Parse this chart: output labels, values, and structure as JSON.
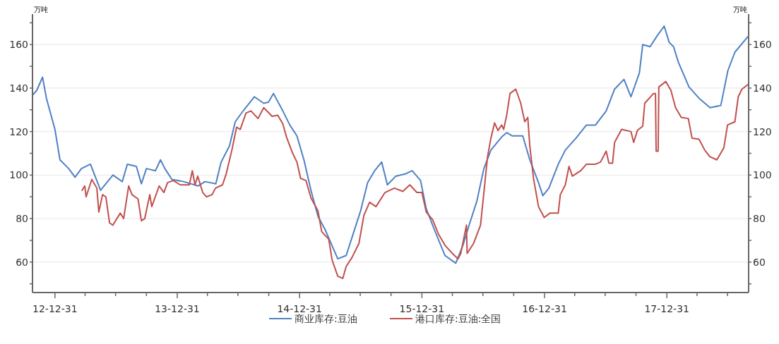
{
  "chart_data": {
    "type": "line",
    "ylabel": "万吨",
    "y2label": "万吨",
    "xlim": [
      "2012-10-25",
      "2018-09-01"
    ],
    "xticks": [
      {
        "value": "2012-12-31",
        "label": "12-12-31"
      },
      {
        "value": "2013-03-31",
        "label": null
      },
      {
        "value": "2013-06-30",
        "label": null
      },
      {
        "value": "2013-09-30",
        "label": null
      },
      {
        "value": "2013-12-31",
        "label": "13-12-31"
      },
      {
        "value": "2014-03-31",
        "label": null
      },
      {
        "value": "2014-06-30",
        "label": null
      },
      {
        "value": "2014-09-30",
        "label": null
      },
      {
        "value": "2014-12-31",
        "label": "14-12-31"
      },
      {
        "value": "2015-03-31",
        "label": null
      },
      {
        "value": "2015-06-30",
        "label": null
      },
      {
        "value": "2015-09-30",
        "label": null
      },
      {
        "value": "2015-12-31",
        "label": "15-12-31"
      },
      {
        "value": "2016-03-31",
        "label": null
      },
      {
        "value": "2016-06-30",
        "label": null
      },
      {
        "value": "2016-09-30",
        "label": null
      },
      {
        "value": "2016-12-31",
        "label": "16-12-31"
      },
      {
        "value": "2017-03-31",
        "label": null
      },
      {
        "value": "2017-06-30",
        "label": null
      },
      {
        "value": "2017-09-30",
        "label": null
      },
      {
        "value": "2017-12-31",
        "label": "17-12-31"
      },
      {
        "value": "2018-03-31",
        "label": null
      },
      {
        "value": "2018-06-30",
        "label": null
      }
    ],
    "ylim": [
      46,
      174
    ],
    "yticks": [
      {
        "value": 50,
        "label": null
      },
      60,
      {
        "value": 70,
        "label": null
      },
      80,
      {
        "value": 90,
        "label": null
      },
      100,
      {
        "value": 110,
        "label": null
      },
      120,
      {
        "value": 130,
        "label": null
      },
      140,
      {
        "value": 150,
        "label": null
      },
      160,
      {
        "value": 170,
        "label": null
      }
    ],
    "y2lim": [
      46,
      174
    ],
    "y2ticks": [
      {
        "value": 50,
        "label": null
      },
      60,
      {
        "value": 70,
        "label": null
      },
      80,
      {
        "value": 90,
        "label": null
      },
      100,
      {
        "value": 110,
        "label": null
      },
      120,
      {
        "value": 130,
        "label": null
      },
      140,
      {
        "value": 150,
        "label": null
      },
      160,
      {
        "value": 170,
        "label": null
      }
    ],
    "grid": "y",
    "legend": "bottom",
    "series": [
      {
        "name": "商业库存:豆油",
        "color": "#4f81c4",
        "x": [
          "2012-10-27",
          "2012-11-07",
          "2012-11-24",
          "2012-12-06",
          "2012-12-15",
          "2012-12-31",
          "2013-01-15",
          "2013-02-10",
          "2013-03-01",
          "2013-03-20",
          "2013-04-16",
          "2013-05-16",
          "2013-06-22",
          "2013-07-20",
          "2013-08-04",
          "2013-08-31",
          "2013-09-15",
          "2013-09-30",
          "2013-10-27",
          "2013-11-11",
          "2013-11-24",
          "2013-12-15",
          "2014-01-19",
          "2014-03-03",
          "2014-03-24",
          "2014-04-25",
          "2014-05-11",
          "2014-06-05",
          "2014-06-22",
          "2014-07-18",
          "2014-08-18",
          "2014-09-15",
          "2014-09-29",
          "2014-10-14",
          "2014-11-11",
          "2014-12-02",
          "2014-12-23",
          "2015-01-13",
          "2015-02-03",
          "2015-02-24",
          "2015-03-17",
          "2015-04-07",
          "2015-04-24",
          "2015-05-19",
          "2015-06-09",
          "2015-07-01",
          "2015-07-22",
          "2015-08-12",
          "2015-09-02",
          "2015-09-19",
          "2015-10-14",
          "2015-11-11",
          "2015-12-02",
          "2015-12-27",
          "2016-01-13",
          "2016-02-06",
          "2016-03-09",
          "2016-04-10",
          "2016-05-01",
          "2016-05-22",
          "2016-06-12",
          "2016-07-03",
          "2016-07-24",
          "2016-08-25",
          "2016-09-09",
          "2016-09-26",
          "2016-10-27",
          "2016-11-17",
          "2016-12-13",
          "2016-12-26",
          "2017-01-13",
          "2017-02-10",
          "2017-03-03",
          "2017-04-04",
          "2017-05-05",
          "2017-06-01",
          "2017-07-03",
          "2017-07-28",
          "2017-08-25",
          "2017-09-15",
          "2017-10-10",
          "2017-10-20",
          "2017-11-11",
          "2017-12-02",
          "2017-12-23",
          "2018-01-07",
          "2018-01-20",
          "2018-02-03",
          "2018-03-07",
          "2018-04-08",
          "2018-05-09",
          "2018-06-10",
          "2018-07-01",
          "2018-07-22",
          "2018-08-29"
        ],
        "values": [
          137,
          139,
          145,
          135,
          130,
          121,
          107,
          103,
          99,
          103,
          105,
          93,
          100,
          97,
          105,
          104,
          96,
          103,
          102,
          107,
          103,
          98,
          97,
          95,
          97,
          96,
          106,
          113.5,
          124.5,
          130,
          136,
          133,
          133.5,
          137.5,
          129.5,
          123,
          118,
          107,
          93,
          81,
          75,
          67.5,
          61.5,
          63,
          73,
          83.5,
          96.5,
          102,
          106,
          95.5,
          99.5,
          100.5,
          102,
          97.5,
          84.5,
          75,
          63,
          59.5,
          67.5,
          78,
          88,
          103,
          111.5,
          117.5,
          119.5,
          118,
          118,
          107,
          96.5,
          90.5,
          94,
          105,
          111.5,
          117,
          123,
          123,
          129.5,
          139.5,
          144,
          136,
          147,
          160,
          159,
          164,
          168.5,
          161,
          159,
          152,
          140.5,
          135,
          131,
          132,
          148,
          156.5,
          163.5
        ]
      },
      {
        "name": "港口库存:豆油:全国",
        "color": "#c0504d",
        "x": [
          "2013-03-22",
          "2013-03-30",
          "2013-04-03",
          "2013-04-20",
          "2013-05-05",
          "2013-05-11",
          "2013-05-22",
          "2013-06-01",
          "2013-06-12",
          "2013-06-22",
          "2013-07-14",
          "2013-07-24",
          "2013-08-08",
          "2013-08-18",
          "2013-09-05",
          "2013-09-15",
          "2013-09-25",
          "2013-10-10",
          "2013-10-16",
          "2013-11-07",
          "2013-11-21",
          "2013-12-02",
          "2013-12-19",
          "2014-01-09",
          "2014-02-05",
          "2014-02-14",
          "2014-02-22",
          "2014-03-02",
          "2014-03-17",
          "2014-03-28",
          "2014-04-14",
          "2014-04-24",
          "2014-05-15",
          "2014-05-26",
          "2014-06-12",
          "2014-06-26",
          "2014-07-07",
          "2014-07-24",
          "2014-08-08",
          "2014-08-29",
          "2014-09-15",
          "2014-10-10",
          "2014-10-27",
          "2014-11-11",
          "2014-11-22",
          "2014-12-09",
          "2014-12-23",
          "2015-01-03",
          "2015-01-19",
          "2015-02-03",
          "2015-02-24",
          "2015-03-07",
          "2015-03-28",
          "2015-04-07",
          "2015-04-24",
          "2015-05-09",
          "2015-05-19",
          "2015-06-05",
          "2015-06-26",
          "2015-07-11",
          "2015-07-28",
          "2015-08-16",
          "2015-09-12",
          "2015-10-10",
          "2015-11-04",
          "2015-11-25",
          "2015-12-16",
          "2015-12-31",
          "2016-01-13",
          "2016-02-01",
          "2016-02-18",
          "2016-03-10",
          "2016-03-31",
          "2016-04-17",
          "2016-04-25",
          "2016-05-12",
          "2016-05-14",
          "2016-06-02",
          "2016-06-23",
          "2016-07-03",
          "2016-07-14",
          "2016-07-24",
          "2016-08-04",
          "2016-08-14",
          "2016-08-25",
          "2016-08-31",
          "2016-09-09",
          "2016-09-19",
          "2016-10-06",
          "2016-10-21",
          "2016-11-02",
          "2016-11-11",
          "2016-11-17",
          "2016-11-28",
          "2016-12-13",
          "2016-12-30",
          "2017-01-16",
          "2017-02-10",
          "2017-02-16",
          "2017-03-03",
          "2017-03-14",
          "2017-03-24",
          "2017-04-18",
          "2017-05-05",
          "2017-06-01",
          "2017-06-16",
          "2017-07-03",
          "2017-07-11",
          "2017-07-22",
          "2017-07-28",
          "2017-08-18",
          "2017-09-15",
          "2017-09-23",
          "2017-10-04",
          "2017-10-20",
          "2017-10-26",
          "2017-11-21",
          "2017-11-27",
          "2017-11-29",
          "2017-12-05",
          "2017-12-07",
          "2017-12-28",
          "2018-01-12",
          "2018-01-26",
          "2018-02-12",
          "2018-03-05",
          "2018-03-16",
          "2018-04-06",
          "2018-04-23",
          "2018-05-08",
          "2018-05-29",
          "2018-06-19",
          "2018-06-30",
          "2018-07-22",
          "2018-08-01",
          "2018-08-12",
          "2018-08-29"
        ],
        "values": [
          93,
          95,
          90,
          98,
          94,
          83,
          91,
          90,
          78,
          77,
          82.5,
          80,
          95,
          91,
          89,
          79,
          80,
          91,
          85.5,
          95,
          92,
          96.5,
          97.5,
          95.5,
          95.5,
          102,
          95.5,
          99.5,
          92,
          90,
          91,
          94,
          95.5,
          100.5,
          111.5,
          122,
          121,
          128.5,
          129.5,
          126,
          131,
          127,
          127.5,
          123.5,
          117.5,
          110.5,
          106,
          98.5,
          97.5,
          89.5,
          83.5,
          74,
          70.5,
          61,
          53.5,
          52.5,
          58,
          62,
          68.5,
          81.5,
          87.5,
          85.5,
          92,
          94,
          92.5,
          95.5,
          92,
          92,
          83,
          79.5,
          73,
          67.5,
          64,
          61.5,
          64,
          77,
          64,
          68.5,
          77,
          92,
          108.5,
          117,
          124,
          120.5,
          123,
          121,
          127.5,
          137.5,
          139.5,
          133,
          124.5,
          126.5,
          113.5,
          98.5,
          85.5,
          80.5,
          82.5,
          82.5,
          91,
          95.5,
          104,
          99.5,
          102,
          105,
          105,
          106,
          111,
          105.5,
          105.5,
          115,
          121,
          120,
          115,
          120.5,
          122.5,
          133,
          137.5,
          137.5,
          111,
          111,
          140.5,
          143,
          139,
          131,
          126.5,
          126,
          117,
          116.5,
          111.5,
          108.5,
          107,
          112.5,
          123,
          124.5,
          136,
          139.5,
          141.5
        ]
      }
    ]
  }
}
